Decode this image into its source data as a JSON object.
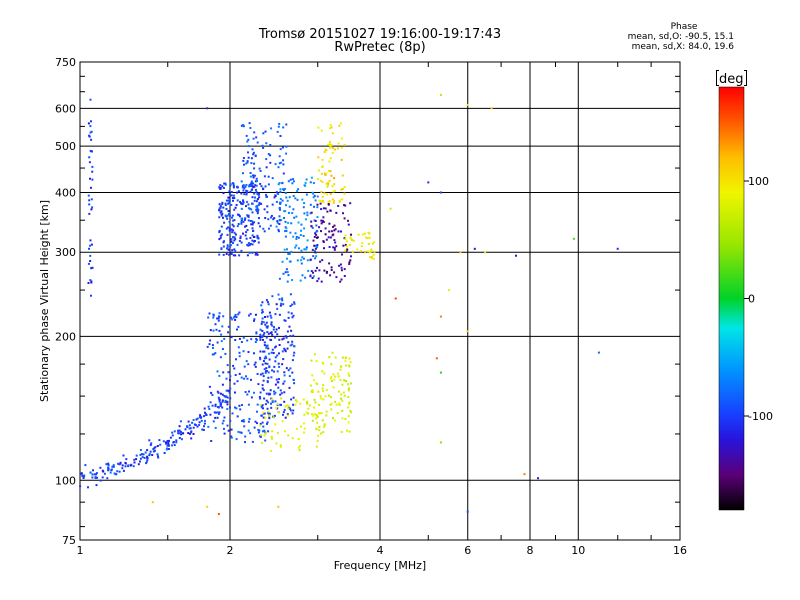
{
  "header": {
    "title_line1": "Tromsø 20151027 19:16:00-19:17:43",
    "title_line2": "RwPretec (8p)"
  },
  "phase_info": {
    "heading": "Phase",
    "line_o": "mean, sd,O: -90.5, 15.1",
    "line_x": "mean, sd,X: 84.0, 19.6"
  },
  "colorbar": {
    "unit_label": "deg",
    "ticks": [
      "100",
      "0",
      "-100"
    ],
    "tick_values": [
      100,
      0,
      -100
    ],
    "range": [
      -180,
      180
    ]
  },
  "chart_data": {
    "type": "scatter",
    "title": "Tromsø 20151027 19:16:00-19:17:43",
    "subtitle": "RwPretec (8p)",
    "xlabel": "Frequency [MHz]",
    "ylabel": "Stationary phase Virtual Height [km]",
    "x_scale": "log2",
    "y_scale": "log",
    "xlim": [
      1,
      16
    ],
    "ylim": [
      75,
      750
    ],
    "x_ticks": [
      1,
      2,
      4,
      6,
      8,
      10,
      16
    ],
    "x_tick_labels": [
      "1",
      "2",
      "4",
      "6",
      "8",
      "10",
      "16"
    ],
    "y_ticks": [
      75,
      100,
      200,
      300,
      400,
      500,
      600,
      750
    ],
    "y_tick_labels": [
      "75",
      "100",
      "200",
      "300",
      "400",
      "500",
      "600",
      "750"
    ],
    "x_grid": [
      2,
      4,
      6,
      8,
      10
    ],
    "y_grid": [
      100,
      200,
      300,
      400,
      500,
      600
    ],
    "grid": true,
    "color_encoding": "phase [deg]",
    "clusters": [
      {
        "x_range": [
          1.0,
          2.0
        ],
        "h_range": [
          102,
          150
        ],
        "phase": -100,
        "spread": [
          0.05,
          0.08
        ],
        "n": 220,
        "trace": "low_ramp"
      },
      {
        "x_range": [
          1.8,
          2.4
        ],
        "h_range": [
          120,
          225
        ],
        "phase": -95,
        "spread": [
          0.05,
          0.12
        ],
        "n": 220
      },
      {
        "x_range": [
          2.3,
          2.7
        ],
        "h_range": [
          135,
          245
        ],
        "phase": -100,
        "spread": [
          0.05,
          0.12
        ],
        "n": 200
      },
      {
        "x_range": [
          2.3,
          3.1
        ],
        "h_range": [
          115,
          150
        ],
        "phase": 85,
        "spread": [
          0.04,
          0.06
        ],
        "n": 70
      },
      {
        "x_range": [
          2.9,
          3.5
        ],
        "h_range": [
          125,
          185
        ],
        "phase": 80,
        "spread": [
          0.04,
          0.08
        ],
        "n": 110
      },
      {
        "x_range": [
          1.9,
          2.3
        ],
        "h_range": [
          295,
          420
        ],
        "phase": -100,
        "spread": [
          0.04,
          0.1
        ],
        "n": 240
      },
      {
        "x_range": [
          2.1,
          2.6
        ],
        "h_range": [
          330,
          560
        ],
        "phase": -90,
        "spread": [
          0.04,
          0.12
        ],
        "n": 160
      },
      {
        "x_range": [
          2.5,
          3.0
        ],
        "h_range": [
          260,
          430
        ],
        "phase": -70,
        "spread": [
          0.04,
          0.12
        ],
        "n": 130
      },
      {
        "x_range": [
          2.9,
          3.5
        ],
        "h_range": [
          260,
          380
        ],
        "phase": -140,
        "spread": [
          0.04,
          0.1
        ],
        "n": 110
      },
      {
        "x_range": [
          3.0,
          3.4
        ],
        "h_range": [
          380,
          560
        ],
        "phase": 100,
        "spread": [
          0.04,
          0.1
        ],
        "n": 80
      },
      {
        "x_range": [
          3.4,
          3.9
        ],
        "h_range": [
          290,
          330
        ],
        "phase": 95,
        "spread": [
          0.04,
          0.05
        ],
        "n": 40
      },
      {
        "x_range": [
          1.04,
          1.06
        ],
        "h_range": [
          230,
          640
        ],
        "phase": -100,
        "spread": [
          0.01,
          0.12
        ],
        "n": 40
      }
    ],
    "scatter_points": [
      [
        5.3,
        640,
        60
      ],
      [
        6.0,
        610,
        100
      ],
      [
        6.7,
        600,
        110
      ],
      [
        5.0,
        420,
        -110
      ],
      [
        5.3,
        400,
        -100
      ],
      [
        5.8,
        300,
        120
      ],
      [
        6.2,
        305,
        -130
      ],
      [
        6.5,
        300,
        80
      ],
      [
        7.5,
        295,
        -120
      ],
      [
        9.8,
        320,
        20
      ],
      [
        12.0,
        305,
        -110
      ],
      [
        5.5,
        250,
        80
      ],
      [
        5.3,
        220,
        140
      ],
      [
        5.2,
        180,
        150
      ],
      [
        5.3,
        168,
        10
      ],
      [
        6.0,
        205,
        110
      ],
      [
        5.3,
        120,
        40
      ],
      [
        7.8,
        103,
        140
      ],
      [
        8.3,
        101,
        -110
      ],
      [
        11.0,
        185,
        -80
      ],
      [
        6.0,
        86,
        -95
      ],
      [
        1.8,
        88,
        110
      ],
      [
        1.9,
        85,
        150
      ],
      [
        2.5,
        88,
        120
      ],
      [
        1.4,
        90,
        120
      ],
      [
        2.0,
        162,
        -120
      ],
      [
        4.2,
        370,
        70
      ],
      [
        4.3,
        240,
        160
      ],
      [
        1.8,
        600,
        -110
      ]
    ]
  }
}
